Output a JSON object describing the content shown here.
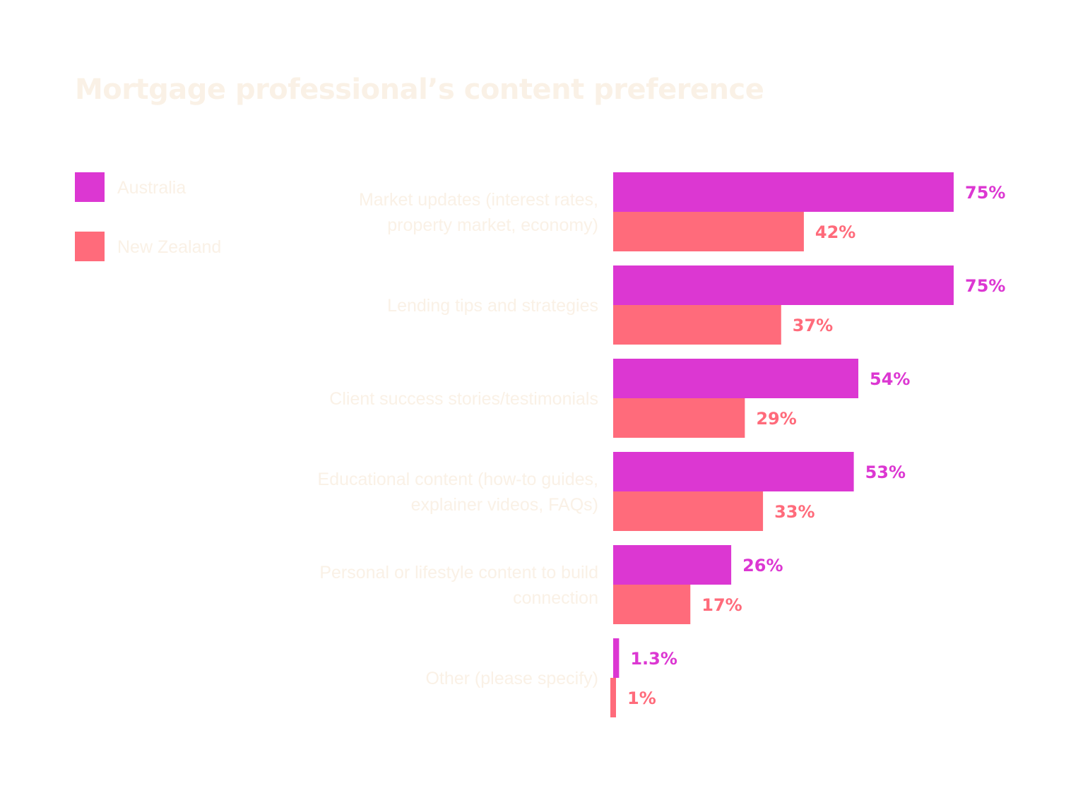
{
  "chart_data": {
    "type": "bar",
    "orientation": "horizontal",
    "title": "Mortgage professional’s content preference",
    "legend_position": "top-left",
    "grid": false,
    "xlim": [
      0,
      75
    ],
    "categories": [
      [
        "Market updates (interest rates,",
        "property market, economy)"
      ],
      [
        "Lending tips and strategies"
      ],
      [
        "Client success stories/testimonials"
      ],
      [
        "Educational content (how-to guides,",
        "explainer videos, FAQs)"
      ],
      [
        "Personal or lifestyle content to build",
        "connection"
      ],
      [
        "Other (please specify)"
      ]
    ],
    "series": [
      {
        "name": "Australia",
        "color": "#dc37d2",
        "values": [
          75,
          75,
          54,
          53,
          26,
          1.3
        ],
        "labels": [
          "75%",
          "75%",
          "54%",
          "53%",
          "26%",
          "1.3%"
        ]
      },
      {
        "name": "New Zealand",
        "color": "#ff6b7b",
        "values": [
          42,
          37,
          29,
          33,
          17,
          1
        ],
        "labels": [
          "42%",
          "37%",
          "29%",
          "33%",
          "17%",
          "1%"
        ]
      }
    ]
  }
}
